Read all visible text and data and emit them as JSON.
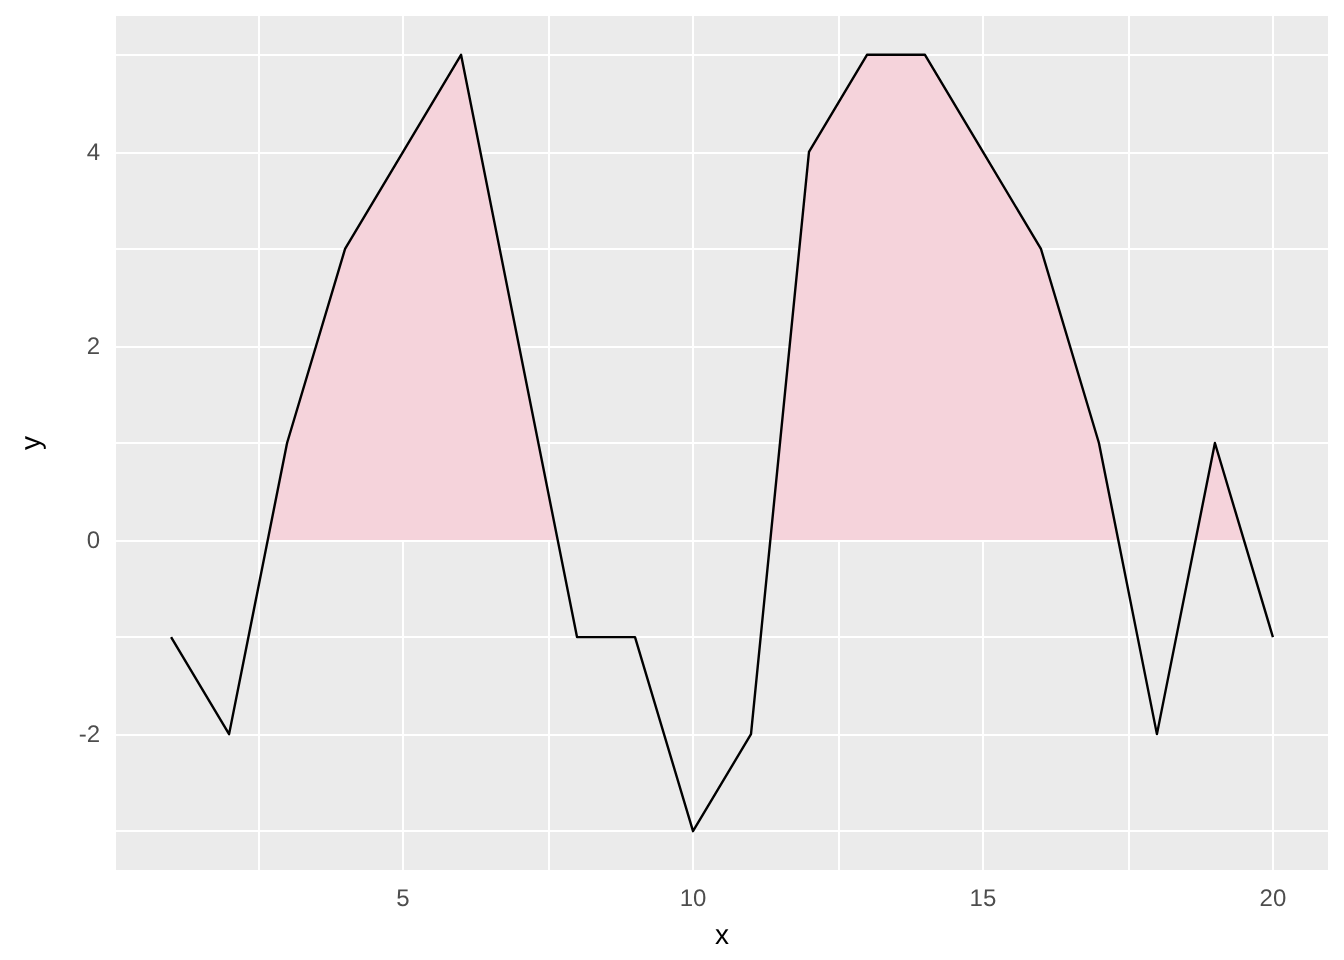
{
  "chart_data": {
    "type": "line",
    "xlabel": "x",
    "ylabel": "y",
    "x": [
      1,
      2,
      3,
      4,
      5,
      6,
      7,
      8,
      9,
      10,
      11,
      12,
      13,
      14,
      15,
      16,
      17,
      18,
      19,
      20
    ],
    "series": [
      {
        "type": "area",
        "color": "#f5d3db",
        "x": [
          2.667,
          3,
          4,
          5,
          6,
          7,
          7.667,
          null,
          11.333,
          12,
          13,
          14,
          15,
          16,
          17,
          17.333,
          null,
          18.667,
          19,
          19.5
        ],
        "values": [
          0,
          1,
          3,
          4,
          5,
          2,
          0,
          null,
          0,
          4,
          5,
          5,
          4,
          3,
          1,
          0,
          null,
          0,
          1,
          0
        ]
      },
      {
        "color": "#000000",
        "values": [
          -1,
          -2,
          1,
          3,
          4,
          5,
          2,
          -1,
          -1,
          -3,
          -2,
          4,
          5,
          5,
          4,
          3,
          1,
          -2,
          1,
          -1
        ]
      }
    ],
    "xlim": [
      0.05,
      20.95
    ],
    "xticks": [
      {
        "value": 2.5,
        "label": null
      },
      5,
      {
        "value": 7.5,
        "label": null
      },
      10,
      {
        "value": 12.5,
        "label": null
      },
      15,
      {
        "value": 17.5,
        "label": null
      },
      20
    ],
    "ylim": [
      -3.4,
      5.4
    ],
    "yticks": [
      {
        "value": -3,
        "label": null
      },
      -2,
      {
        "value": -1,
        "label": null
      },
      0,
      {
        "value": 1,
        "label": null
      },
      2,
      {
        "value": 3,
        "label": null
      },
      4,
      {
        "value": 5,
        "label": null
      }
    ],
    "grid": true,
    "marker": "none",
    "line_style": "solid"
  }
}
